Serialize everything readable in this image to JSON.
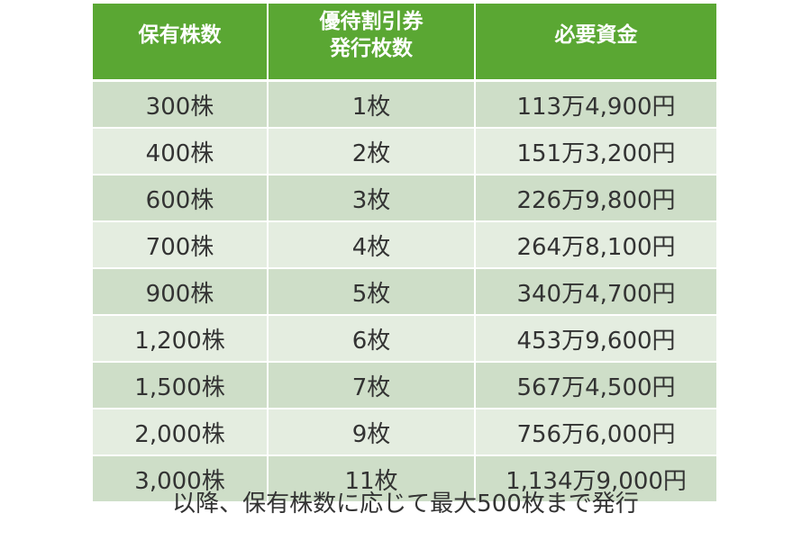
{
  "colors": {
    "header_bg": "#5aa733",
    "row_dark": "#cedec8",
    "row_light": "#e4ede0",
    "text": "#333333"
  },
  "table": {
    "headers": [
      "保有株数",
      "優待割引券\n発行枚数",
      "必要資金"
    ],
    "rows": [
      [
        "300株",
        "1枚",
        "113万4,900円"
      ],
      [
        "400株",
        "2枚",
        "151万3,200円"
      ],
      [
        "600株",
        "3枚",
        "226万9,800円"
      ],
      [
        "700株",
        "4枚",
        "264万8,100円"
      ],
      [
        "900株",
        "5枚",
        "340万4,700円"
      ],
      [
        "1,200株",
        "6枚",
        "453万9,600円"
      ],
      [
        "1,500株",
        "7枚",
        "567万4,500円"
      ],
      [
        "2,000株",
        "9枚",
        "756万6,000円"
      ],
      [
        "3,000株",
        "11枚",
        "1,134万9,000円"
      ]
    ]
  },
  "footnote": "以降、保有株数に応じて最大500枚まで発行"
}
